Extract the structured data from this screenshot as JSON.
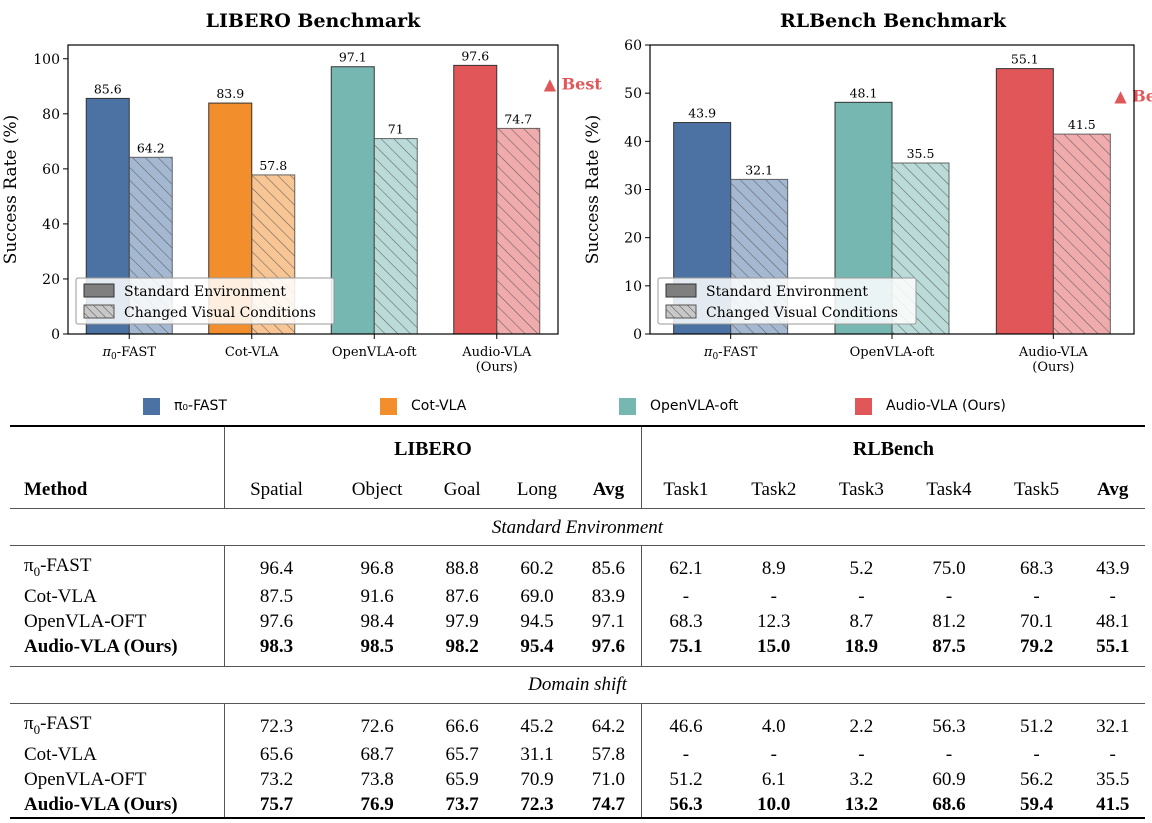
{
  "chart_data": [
    {
      "type": "bar",
      "title": "LIBERO Benchmark",
      "ylabel": "Success Rate (%)",
      "xlabel": "",
      "ylim": [
        0,
        105
      ],
      "yticks": [
        "0",
        "20",
        "40",
        "60",
        "80",
        "100"
      ],
      "categories": [
        "π₀-FAST",
        "Cot-VLA",
        "OpenVLA-oft",
        "Audio-VLA (Ours)"
      ],
      "series": [
        {
          "name": "Standard Environment",
          "values": [
            85.6,
            83.9,
            97.1,
            97.6
          ]
        },
        {
          "name": "Changed Visual Conditions",
          "values": [
            64.2,
            57.8,
            71.0,
            74.7
          ]
        }
      ],
      "colors": [
        "#4c72a4",
        "#f28e2b",
        "#76b7b2",
        "#e15759"
      ],
      "annotation": "▲ Best",
      "legend_position": "lower-left"
    },
    {
      "type": "bar",
      "title": "RLBench Benchmark",
      "ylabel": "Success Rate (%)",
      "xlabel": "",
      "ylim": [
        0,
        60
      ],
      "yticks": [
        "0",
        "10",
        "20",
        "30",
        "40",
        "50",
        "60"
      ],
      "categories": [
        "π₀-FAST",
        "OpenVLA-oft",
        "Audio-VLA (Ours)"
      ],
      "series": [
        {
          "name": "Standard Environment",
          "values": [
            43.9,
            48.1,
            55.1
          ]
        },
        {
          "name": "Changed Visual Conditions",
          "values": [
            32.1,
            35.5,
            41.5
          ]
        }
      ],
      "colors": [
        "#4c72a4",
        "#76b7b2",
        "#e15759"
      ],
      "annotation": "▲ Best",
      "legend_position": "lower-left"
    }
  ],
  "bottom_legend": [
    {
      "label": "π₀-FAST",
      "color": "#4c72a4"
    },
    {
      "label": "Cot-VLA",
      "color": "#f28e2b"
    },
    {
      "label": "OpenVLA-oft",
      "color": "#76b7b2"
    },
    {
      "label": "Audio-VLA (Ours)",
      "color": "#e15759"
    }
  ],
  "table": {
    "group_headers": {
      "libero": "LIBERO",
      "rlbench": "RLBench"
    },
    "columns": {
      "method": "Method",
      "libero": [
        "Spatial",
        "Object",
        "Goal",
        "Long",
        "Avg"
      ],
      "rlbench": [
        "Task1",
        "Task2",
        "Task3",
        "Task4",
        "Task5",
        "Avg"
      ]
    },
    "sections": [
      {
        "title": "Standard Environment",
        "rows": [
          {
            "method": "π₀-FAST",
            "values": [
              "96.4",
              "96.8",
              "88.8",
              "60.2",
              "85.6",
              "62.1",
              "8.9",
              "5.2",
              "75.0",
              "68.3",
              "43.9"
            ],
            "bold": false
          },
          {
            "method": "Cot-VLA",
            "values": [
              "87.5",
              "91.6",
              "87.6",
              "69.0",
              "83.9",
              "-",
              "-",
              "-",
              "-",
              "-",
              "-"
            ],
            "bold": false
          },
          {
            "method": "OpenVLA-OFT",
            "values": [
              "97.6",
              "98.4",
              "97.9",
              "94.5",
              "97.1",
              "68.3",
              "12.3",
              "8.7",
              "81.2",
              "70.1",
              "48.1"
            ],
            "bold": false
          },
          {
            "method": "Audio-VLA (Ours)",
            "values": [
              "98.3",
              "98.5",
              "98.2",
              "95.4",
              "97.6",
              "75.1",
              "15.0",
              "18.9",
              "87.5",
              "79.2",
              "55.1"
            ],
            "bold": true
          }
        ]
      },
      {
        "title": "Domain shift",
        "rows": [
          {
            "method": "π₀-FAST",
            "values": [
              "72.3",
              "72.6",
              "66.6",
              "45.2",
              "64.2",
              "46.6",
              "4.0",
              "2.2",
              "56.3",
              "51.2",
              "32.1"
            ],
            "bold": false
          },
          {
            "method": "Cot-VLA",
            "values": [
              "65.6",
              "68.7",
              "65.7",
              "31.1",
              "57.8",
              "-",
              "-",
              "-",
              "-",
              "-",
              "-"
            ],
            "bold": false
          },
          {
            "method": "OpenVLA-OFT",
            "values": [
              "73.2",
              "73.8",
              "65.9",
              "70.9",
              "71.0",
              "51.2",
              "6.1",
              "3.2",
              "60.9",
              "56.2",
              "35.5"
            ],
            "bold": false
          },
          {
            "method": "Audio-VLA (Ours)",
            "values": [
              "75.7",
              "76.9",
              "73.7",
              "72.3",
              "74.7",
              "56.3",
              "10.0",
              "13.2",
              "68.6",
              "59.4",
              "41.5"
            ],
            "bold": true
          }
        ]
      }
    ]
  }
}
